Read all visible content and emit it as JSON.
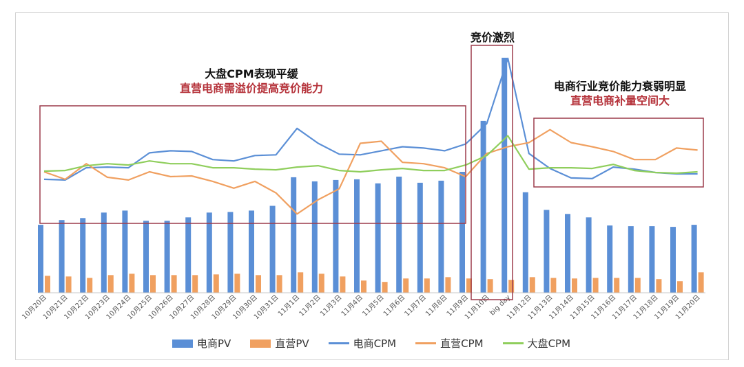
{
  "annotations": {
    "left_title": "大盘CPM表现平缓",
    "left_sub": "直营电商需溢价提高竞价能力",
    "mid_title": "竞价激烈",
    "right_title": "电商行业竞价能力衰弱明显",
    "right_sub": "直营电商补量空间大"
  },
  "colors": {
    "ecom_pv": "#5b8fd6",
    "direct_pv": "#f0a060",
    "ecom_cpm": "#5b8fd6",
    "direct_cpm": "#f0a060",
    "market_cpm": "#8fce5c",
    "box": "#9c3a4a"
  },
  "chart_data": {
    "type": "bar",
    "categories": [
      "10月20日",
      "10月21日",
      "10月22日",
      "10月23日",
      "10月24日",
      "10月25日",
      "10月26日",
      "10月27日",
      "10月28日",
      "10月29日",
      "10月30日",
      "10月31日",
      "11月1日",
      "11月2日",
      "11月3日",
      "11月4日",
      "11月5日",
      "11月6日",
      "11月7日",
      "11月8日",
      "11月9日",
      "11月10日",
      "big day",
      "11月12日",
      "11月13日",
      "11月14日",
      "11月15日",
      "11月16日",
      "11月17日",
      "11月18日",
      "11月19日",
      "11月20日"
    ],
    "series": [
      {
        "name": "电商PV",
        "kind": "bar",
        "values": [
          100,
          107,
          110,
          118,
          121,
          106,
          106,
          111,
          118,
          119,
          121,
          128,
          170,
          164,
          166,
          167,
          161,
          171,
          162,
          165,
          178,
          253,
          346,
          148,
          122,
          116,
          111,
          99,
          98,
          98,
          97,
          100
        ]
      },
      {
        "name": "直营PV",
        "kind": "bar",
        "values": [
          25,
          24,
          22,
          26,
          28,
          26,
          26,
          26,
          27,
          28,
          26,
          26,
          30,
          28,
          24,
          18,
          16,
          21,
          21,
          23,
          21,
          20,
          19,
          23,
          22,
          21,
          22,
          22,
          22,
          20,
          17,
          30
        ]
      },
      {
        "name": "电商CPM",
        "kind": "line",
        "values": [
          167,
          166,
          184,
          185,
          184,
          206,
          209,
          208,
          196,
          194,
          202,
          203,
          242,
          220,
          204,
          203,
          209,
          215,
          213,
          209,
          219,
          249,
          345,
          205,
          183,
          169,
          168,
          185,
          182,
          177,
          175,
          175
        ]
      },
      {
        "name": "直营CPM",
        "kind": "line",
        "values": [
          178,
          167,
          190,
          170,
          166,
          178,
          171,
          172,
          164,
          154,
          164,
          147,
          116,
          137,
          153,
          220,
          223,
          192,
          190,
          184,
          171,
          205,
          215,
          221,
          240,
          221,
          215,
          208,
          196,
          196,
          213,
          210
        ]
      },
      {
        "name": "大盘CPM",
        "kind": "line",
        "values": [
          179,
          180,
          187,
          190,
          188,
          194,
          190,
          190,
          184,
          184,
          182,
          181,
          185,
          187,
          180,
          178,
          181,
          183,
          180,
          180,
          188,
          202,
          231,
          182,
          184,
          184,
          183,
          189,
          180,
          177,
          176,
          178
        ]
      }
    ]
  }
}
